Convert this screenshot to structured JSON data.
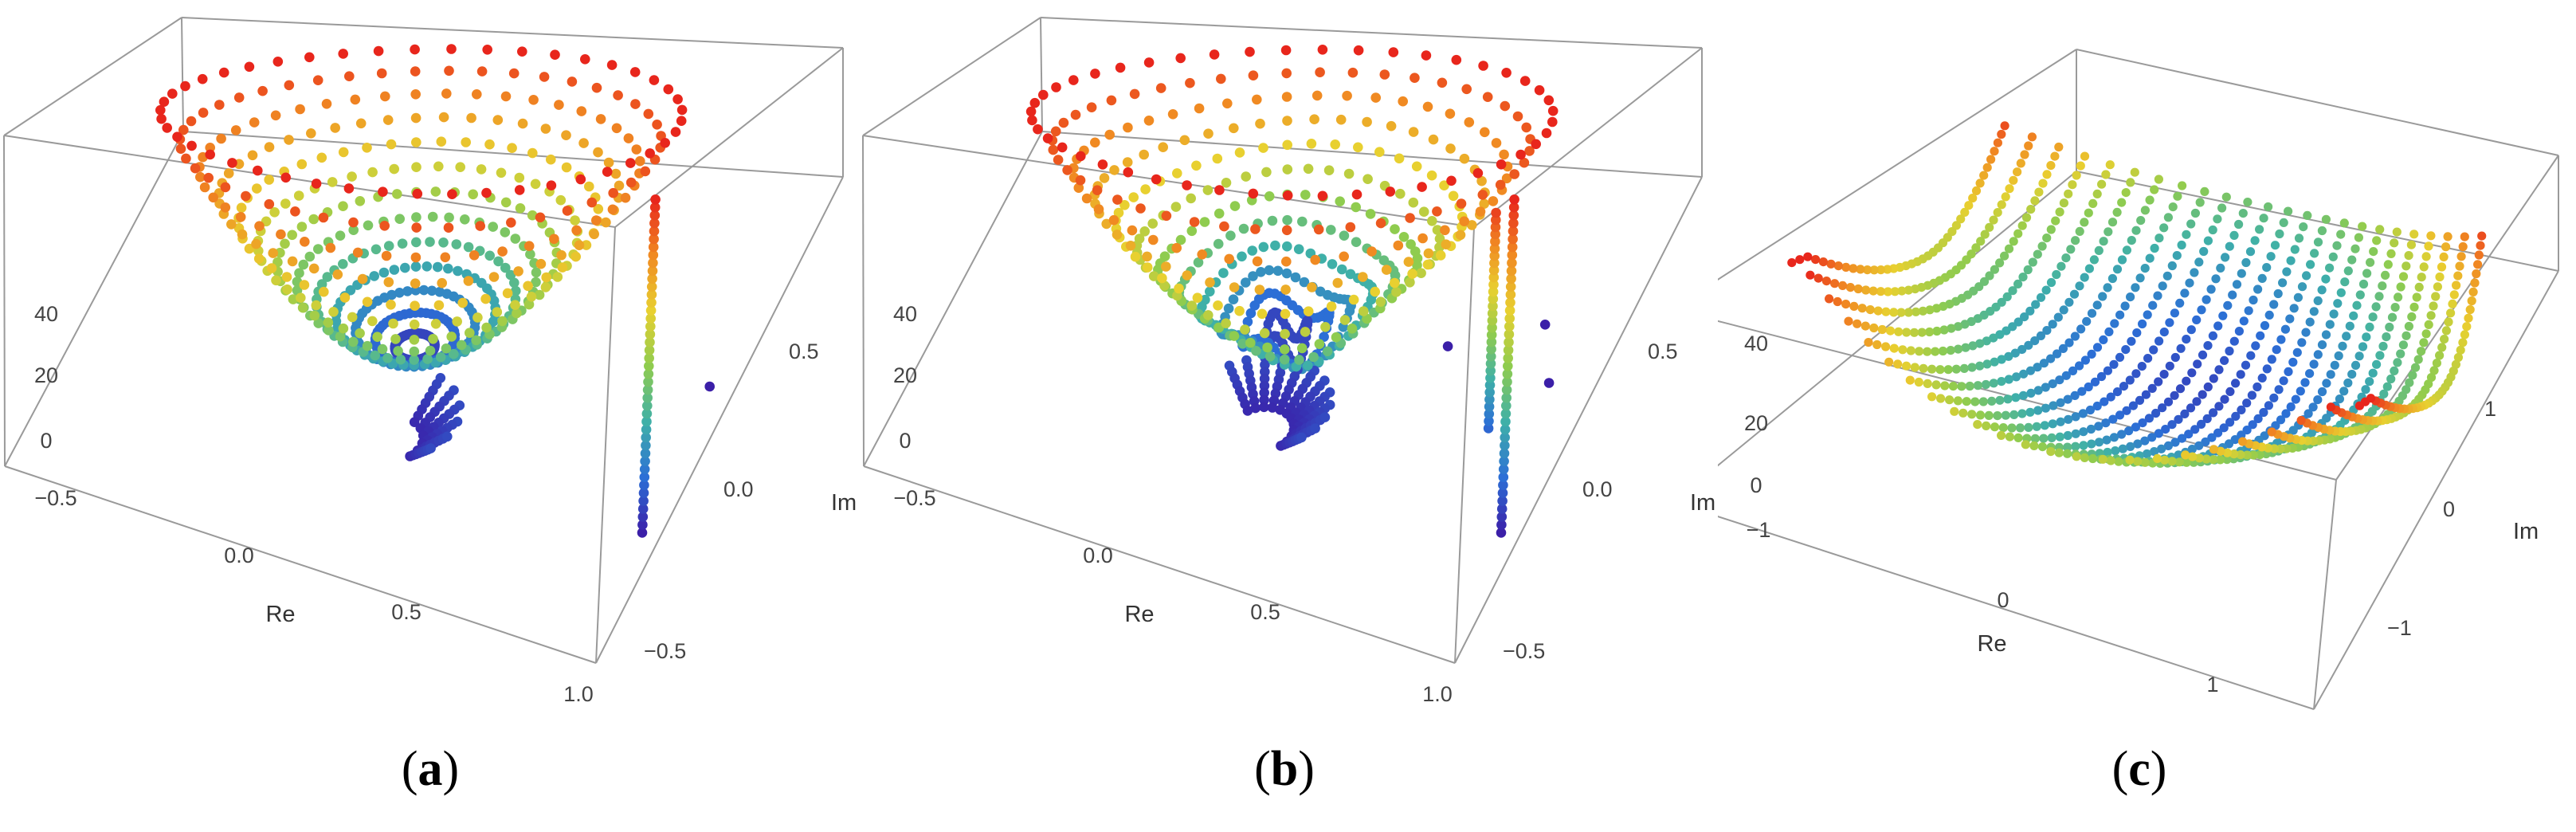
{
  "figure": {
    "panels": [
      {
        "id": "a",
        "caption_open": "(",
        "caption_letter": "a",
        "caption_close": ")",
        "x_label": "Re",
        "y_label": "Im",
        "z_ticks": [
          "0",
          "20",
          "40"
        ],
        "x_ticks": [
          "−0.5",
          "0.0",
          "0.5",
          "1.0"
        ],
        "y_ticks": [
          "−0.5",
          "0.0",
          "0.5"
        ]
      },
      {
        "id": "b",
        "caption_open": "(",
        "caption_letter": "b",
        "caption_close": ")",
        "x_label": "Re",
        "y_label": "Im",
        "z_ticks": [
          "0",
          "20",
          "40"
        ],
        "x_ticks": [
          "−0.5",
          "0.0",
          "0.5",
          "1.0"
        ],
        "y_ticks": [
          "−0.5",
          "0.0",
          "0.5"
        ]
      },
      {
        "id": "c",
        "caption_open": "(",
        "caption_letter": "c",
        "caption_close": ")",
        "x_label": "Re",
        "y_label": "Im",
        "z_ticks": [
          "0",
          "20",
          "40"
        ],
        "x_ticks": [
          "−1",
          "0",
          "1"
        ],
        "y_ticks": [
          "−1",
          "0",
          "1"
        ]
      }
    ]
  },
  "chart_data": [
    {
      "type": "scatter",
      "panel": "a",
      "description_shape": "bowl",
      "xlabel": "Re",
      "ylabel": "Im",
      "zlabel": "",
      "xlim": [
        -0.6,
        1.0
      ],
      "ylim": [
        -0.65,
        0.65
      ],
      "zlim": [
        0,
        48
      ],
      "grid": false,
      "colormap": [
        "#3b1fa8",
        "#2c6fd6",
        "#3fb0a8",
        "#8fcc4f",
        "#e8d030",
        "#f08a22",
        "#e8261c"
      ],
      "bowl": {
        "center_re": 0.22,
        "center_im": 0.0,
        "radius_re": 0.62,
        "radius_im": 0.55,
        "z_min": 2,
        "z_max": 46,
        "spokes": 46,
        "rings": 13
      },
      "isolated_points": [
        {
          "re": 0.95,
          "im": 0.05,
          "z": 2
        }
      ],
      "vertical_stack": {
        "re": 0.97,
        "im": -0.35,
        "z_from": 2,
        "z_to": 46
      }
    },
    {
      "type": "scatter",
      "panel": "b",
      "description_shape": "bowl-with-scatter",
      "xlabel": "Re",
      "ylabel": "Im",
      "zlabel": "",
      "xlim": [
        -0.6,
        1.0
      ],
      "ylim": [
        -0.65,
        0.65
      ],
      "zlim": [
        0,
        48
      ],
      "grid": false,
      "colormap": [
        "#3b1fa8",
        "#2c6fd6",
        "#3fb0a8",
        "#8fcc4f",
        "#e8d030",
        "#f08a22",
        "#e8261c"
      ],
      "bowl": {
        "center_re": 0.25,
        "center_im": 0.0,
        "radius_re": 0.62,
        "radius_im": 0.55,
        "z_min": 4,
        "z_max": 46,
        "spokes": 46,
        "rings": 12
      },
      "isolated_points": [
        {
          "re": 0.62,
          "im": 0.1,
          "z": 2
        },
        {
          "re": 0.82,
          "im": 0.2,
          "z": 2
        },
        {
          "re": 0.9,
          "im": 0.05,
          "z": 2
        }
      ],
      "vertical_stack": {
        "re": 0.97,
        "im": -0.35,
        "z_from": 2,
        "z_to": 46
      }
    },
    {
      "type": "scatter",
      "panel": "c",
      "description_shape": "saddle",
      "xlabel": "Re",
      "ylabel": "Im",
      "zlabel": "",
      "xlim": [
        -1.3,
        1.6
      ],
      "ylim": [
        -1.6,
        1.6
      ],
      "zlim": [
        0,
        48
      ],
      "grid": false,
      "colormap": [
        "#3b1fa8",
        "#2c6fd6",
        "#3fb0a8",
        "#8fcc4f",
        "#e8d030",
        "#f08a22",
        "#e8261c"
      ],
      "curves": 24,
      "points_per_curve": 40
    }
  ]
}
